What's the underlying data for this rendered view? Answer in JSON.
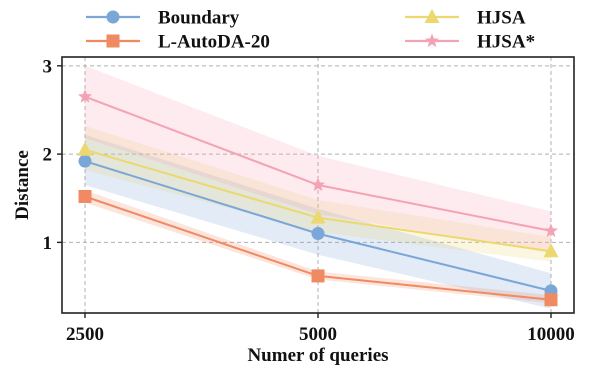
{
  "chart_data": {
    "type": "line",
    "xlabel": "Numer of queries",
    "ylabel": "Distance",
    "categories": [
      "2500",
      "5000",
      "10000"
    ],
    "yticks": [
      "1",
      "2",
      "3"
    ],
    "ylim": [
      0.2,
      3.1
    ],
    "grid": true,
    "legend_position": "top",
    "series": [
      {
        "name": "Boundary",
        "marker": "circle",
        "color": "#7aa6d8",
        "values": [
          1.92,
          1.1,
          0.45
        ],
        "band_lower": [
          1.65,
          0.86,
          0.25
        ],
        "band_upper": [
          2.22,
          1.38,
          0.65
        ]
      },
      {
        "name": "L-AutoDA-20",
        "marker": "square",
        "color": "#ef8a62",
        "values": [
          1.52,
          0.62,
          0.35
        ],
        "band_lower": [
          1.45,
          0.58,
          0.31
        ],
        "band_upper": [
          1.59,
          0.67,
          0.4
        ]
      },
      {
        "name": "HJSA",
        "marker": "triangle",
        "color": "#ecd870",
        "values": [
          2.05,
          1.28,
          0.9
        ],
        "band_lower": [
          1.82,
          1.12,
          0.78
        ],
        "band_upper": [
          2.32,
          1.48,
          1.06
        ]
      },
      {
        "name": "HJSA*",
        "marker": "star",
        "color": "#f4a3b4",
        "values": [
          2.65,
          1.65,
          1.13
        ],
        "band_lower": [
          2.18,
          1.32,
          0.88
        ],
        "band_upper": [
          3.0,
          1.98,
          1.35
        ]
      }
    ]
  }
}
